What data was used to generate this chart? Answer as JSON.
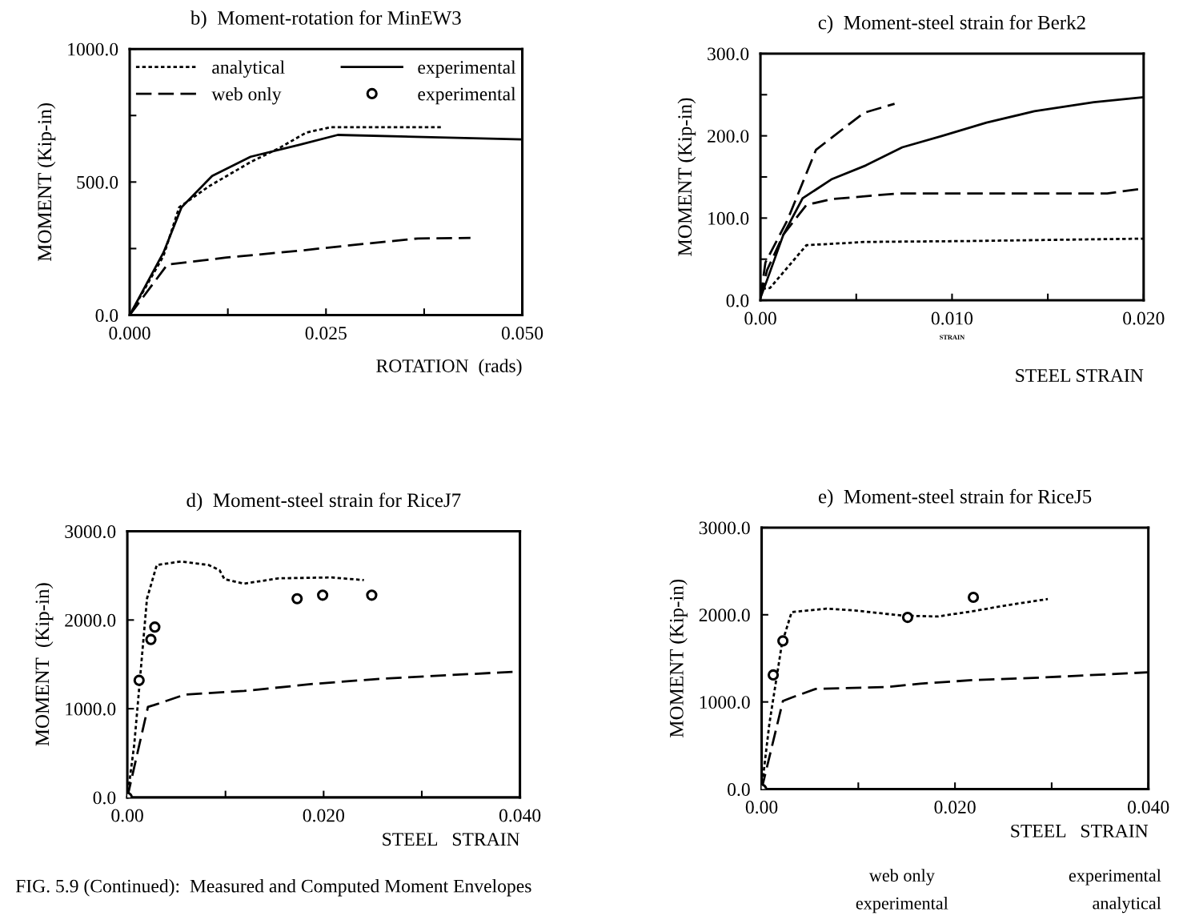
{
  "chart_data": [
    {
      "type": "line",
      "title": "b)  Moment-rotation for MinEW3",
      "xlabel": "ROTATION  (rads)",
      "ylabel": "MOMENT (Kip-in)",
      "xlim": [
        0,
        0.05
      ],
      "ylim": [
        0,
        1000
      ],
      "xticks": [
        {
          "value": 0,
          "label": "0.000"
        },
        {
          "value": 0.0125,
          "label": null
        },
        {
          "value": 0.025,
          "label": "0.025"
        },
        {
          "value": 0.0375,
          "label": null
        },
        {
          "value": 0.05,
          "label": "0.050"
        }
      ],
      "yticks": [
        {
          "value": 0,
          "label": "0.0"
        },
        {
          "value": 250,
          "label": null
        },
        {
          "value": 500,
          "label": "500.0"
        },
        {
          "value": 750,
          "label": null
        },
        {
          "value": 1000,
          "label": "1000.0"
        }
      ],
      "grid": false,
      "legend": "top",
      "series": [
        {
          "name": "analytical",
          "color": "#000000",
          "line_style": "dotted",
          "x": [
            0,
            0.0043,
            0.0063,
            0.0101,
            0.0154,
            0.019,
            0.0225,
            0.0256,
            0.0398
          ],
          "values": [
            0,
            222,
            405,
            484,
            575,
            627,
            686,
            706,
            706
          ]
        },
        {
          "name": "web only",
          "color": "#000000",
          "line_style": "dashed",
          "x": [
            0,
            0.0048,
            0.0123,
            0.0216,
            0.03,
            0.0367,
            0.0434
          ],
          "values": [
            0,
            190,
            216,
            242,
            268,
            288,
            290
          ]
        },
        {
          "name": "experimental",
          "color": "#000000",
          "line_style": "solid",
          "x": [
            0,
            0.0043,
            0.0066,
            0.0105,
            0.0154,
            0.0216,
            0.0265,
            0.05
          ],
          "values": [
            0,
            235,
            405,
            523,
            595,
            640,
            677,
            660
          ]
        },
        {
          "name": "experimental",
          "type": "scatter",
          "marker": "circle",
          "color": "#000000"
        }
      ]
    },
    {
      "type": "line",
      "title": "c)  Moment-steel strain for Berk2",
      "xlabel": "STEEL STRAIN",
      "ylabel": "MOMENT (Kip-in)",
      "annotations": [
        "STRAIN"
      ],
      "xlim": [
        0,
        0.02
      ],
      "ylim": [
        0,
        300
      ],
      "xticks": [
        {
          "value": 0,
          "label": "0.00"
        },
        {
          "value": 0.005,
          "label": null
        },
        {
          "value": 0.01,
          "label": "0.010"
        },
        {
          "value": 0.015,
          "label": null
        },
        {
          "value": 0.02,
          "label": "0.020"
        }
      ],
      "yticks": [
        {
          "value": 0,
          "label": "0.0"
        },
        {
          "value": 50,
          "label": null
        },
        {
          "value": 100,
          "label": "100.0"
        },
        {
          "value": 150,
          "label": null
        },
        {
          "value": 200,
          "label": "200.0"
        },
        {
          "value": 250,
          "label": null
        },
        {
          "value": 300,
          "label": "300.0"
        }
      ],
      "grid": false,
      "series": [
        {
          "color": "#000000",
          "line_style": "dashed",
          "x": [
            0,
            0.00026,
            0.0014,
            0.0029,
            0.0054,
            0.007
          ],
          "values": [
            3,
            46,
            97,
            183,
            228,
            239
          ]
        },
        {
          "color": "#000000",
          "line_style": "solid",
          "x": [
            0,
            0.00035,
            0.0012,
            0.0022,
            0.0037,
            0.0055,
            0.0074,
            0.0095,
            0.0118,
            0.0143,
            0.0174,
            0.02
          ],
          "values": [
            3,
            25,
            80,
            124,
            147,
            164,
            186,
            200,
            216,
            230,
            241,
            247
          ]
        },
        {
          "color": "#000000",
          "line_style": "dashed",
          "x": [
            0,
            0.00035,
            0.0012,
            0.0024,
            0.0037,
            0.0072,
            0.0107,
            0.0181,
            0.02
          ],
          "values": [
            3,
            37,
            80,
            116,
            123,
            130,
            130,
            130,
            136
          ]
        },
        {
          "color": "#000000",
          "line_style": "dotted",
          "x": [
            0.0001,
            0.0005,
            0.0024,
            0.0055,
            0.0107,
            0.02
          ],
          "values": [
            14,
            15,
            67,
            71,
            72,
            75
          ]
        }
      ]
    },
    {
      "type": "line",
      "title": "d)  Moment-steel strain for RiceJ7",
      "xlabel": "STEEL   STRAIN",
      "ylabel": "MOMENT  (Kip-in)",
      "annotations": [
        "FIG. 5.9 (Continued):  Measured and Computed Moment Envelopes"
      ],
      "xlim": [
        0,
        0.04
      ],
      "ylim": [
        0,
        3000
      ],
      "xticks": [
        {
          "value": 0,
          "label": "0.00"
        },
        {
          "value": 0.01,
          "label": null
        },
        {
          "value": 0.02,
          "label": "0.020"
        },
        {
          "value": 0.03,
          "label": null
        },
        {
          "value": 0.04,
          "label": "0.040"
        }
      ],
      "yticks": [
        {
          "value": 0,
          "label": "0.0"
        },
        {
          "value": 1000,
          "label": "1000.0"
        },
        {
          "value": 2000,
          "label": "2000.0"
        },
        {
          "value": 3000,
          "label": "3000.0"
        }
      ],
      "grid": false,
      "series": [
        {
          "color": "#000000",
          "line_style": "dotted",
          "x": [
            0,
            0.0007,
            0.0012,
            0.002,
            0.003,
            0.0055,
            0.0083,
            0.0094,
            0.0099,
            0.0119,
            0.0154,
            0.0208,
            0.0241
          ],
          "values": [
            0,
            590,
            1220,
            2240,
            2620,
            2660,
            2620,
            2560,
            2460,
            2410,
            2470,
            2480,
            2450
          ]
        },
        {
          "color": "#000000",
          "line_style": "dashed",
          "x": [
            0,
            0.0021,
            0.0027,
            0.0059,
            0.0119,
            0.019,
            0.0261,
            0.04
          ],
          "values": [
            0,
            1020,
            1040,
            1160,
            1200,
            1280,
            1340,
            1420
          ]
        },
        {
          "type": "scatter",
          "marker": "circle",
          "color": "#000000",
          "x": [
            0,
            0.0012,
            0.0024,
            0.0028,
            0.0173,
            0.0199,
            0.0249
          ],
          "values": [
            0,
            1320,
            1780,
            1920,
            2240,
            2280,
            2280
          ]
        }
      ]
    },
    {
      "type": "line",
      "title": "e)  Moment-steel strain for RiceJ5",
      "xlabel": "STEEL   STRAIN",
      "ylabel": "MOMENT (Kip-in)",
      "annotations": [
        "web only",
        "experimental",
        "experimental",
        "analytical"
      ],
      "xlim": [
        0,
        0.04
      ],
      "ylim": [
        0,
        3000
      ],
      "xticks": [
        {
          "value": 0,
          "label": "0.00"
        },
        {
          "value": 0.01,
          "label": null
        },
        {
          "value": 0.02,
          "label": "0.020"
        },
        {
          "value": 0.03,
          "label": null
        },
        {
          "value": 0.04,
          "label": "0.040"
        }
      ],
      "yticks": [
        {
          "value": 0,
          "label": "0.0"
        },
        {
          "value": 1000,
          "label": "1000.0"
        },
        {
          "value": 2000,
          "label": "2000.0"
        },
        {
          "value": 3000,
          "label": "3000.0"
        }
      ],
      "grid": false,
      "series": [
        {
          "color": "#000000",
          "line_style": "dotted",
          "x": [
            0,
            0.0008,
            0.0021,
            0.0031,
            0.0067,
            0.0096,
            0.0146,
            0.0182,
            0.0218,
            0.0254,
            0.0296
          ],
          "values": [
            0,
            750,
            1670,
            2030,
            2070,
            2050,
            1990,
            1980,
            2040,
            2110,
            2180
          ]
        },
        {
          "color": "#000000",
          "line_style": "dashed",
          "x": [
            0,
            0.0022,
            0.0031,
            0.0056,
            0.0128,
            0.0164,
            0.0218,
            0.029,
            0.04
          ],
          "values": [
            0,
            1010,
            1050,
            1150,
            1170,
            1210,
            1250,
            1280,
            1340
          ]
        },
        {
          "type": "scatter",
          "marker": "circle",
          "color": "#000000",
          "x": [
            0,
            0.0012,
            0.0022,
            0.0151,
            0.0219
          ],
          "values": [
            0,
            1310,
            1700,
            1970,
            2200
          ]
        }
      ]
    }
  ]
}
